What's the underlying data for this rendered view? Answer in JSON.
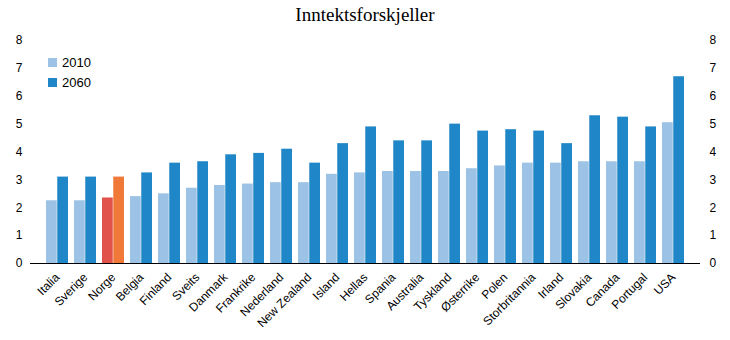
{
  "chart_data": {
    "type": "bar",
    "title": "Inntektsforskjeller",
    "categories": [
      "Italia",
      "Sverige",
      "Norge",
      "Belgia",
      "Finland",
      "Sveits",
      "Danmark",
      "Frankrike",
      "Nederland",
      "New Zealand",
      "Island",
      "Hellas",
      "Spania",
      "Australia",
      "Tyskland",
      "Østerrike",
      "Polen",
      "Storbritannia",
      "Irland",
      "Slovakia",
      "Canada",
      "Portugal",
      "USA"
    ],
    "series": [
      {
        "name": "2010",
        "color": "#9cc3e5",
        "colors": [
          "#9cc3e5",
          "#9cc3e5",
          "#e0524a",
          "#9cc3e5",
          "#9cc3e5",
          "#9cc3e5",
          "#9cc3e5",
          "#9cc3e5",
          "#9cc3e5",
          "#9cc3e5",
          "#9cc3e5",
          "#9cc3e5",
          "#9cc3e5",
          "#9cc3e5",
          "#9cc3e5",
          "#9cc3e5",
          "#9cc3e5",
          "#9cc3e5",
          "#9cc3e5",
          "#9cc3e5",
          "#9cc3e5",
          "#9cc3e5",
          "#9cc3e5"
        ],
        "values": [
          2.25,
          2.25,
          2.35,
          2.4,
          2.5,
          2.7,
          2.8,
          2.85,
          2.9,
          2.9,
          3.2,
          3.25,
          3.3,
          3.3,
          3.3,
          3.4,
          3.5,
          3.6,
          3.6,
          3.65,
          3.65,
          3.65,
          5.05
        ]
      },
      {
        "name": "2060",
        "color": "#1f86c7",
        "colors": [
          "#1f86c7",
          "#1f86c7",
          "#f0793a",
          "#1f86c7",
          "#1f86c7",
          "#1f86c7",
          "#1f86c7",
          "#1f86c7",
          "#1f86c7",
          "#1f86c7",
          "#1f86c7",
          "#1f86c7",
          "#1f86c7",
          "#1f86c7",
          "#1f86c7",
          "#1f86c7",
          "#1f86c7",
          "#1f86c7",
          "#1f86c7",
          "#1f86c7",
          "#1f86c7",
          "#1f86c7",
          "#1f86c7"
        ],
        "values": [
          3.1,
          3.1,
          3.1,
          3.25,
          3.6,
          3.65,
          3.9,
          3.95,
          4.1,
          3.6,
          4.3,
          4.9,
          4.4,
          4.4,
          5.0,
          4.75,
          4.8,
          4.75,
          4.3,
          5.3,
          5.25,
          4.9,
          6.7
        ]
      }
    ],
    "ylim": [
      0,
      8
    ],
    "yticks": [
      0,
      1,
      2,
      3,
      4,
      5,
      6,
      7,
      8
    ],
    "y2lim": [
      0,
      8
    ],
    "y2ticks": [
      0,
      1,
      2,
      3,
      4,
      5,
      6,
      7,
      8
    ],
    "grid": false,
    "legend": "top-left"
  }
}
